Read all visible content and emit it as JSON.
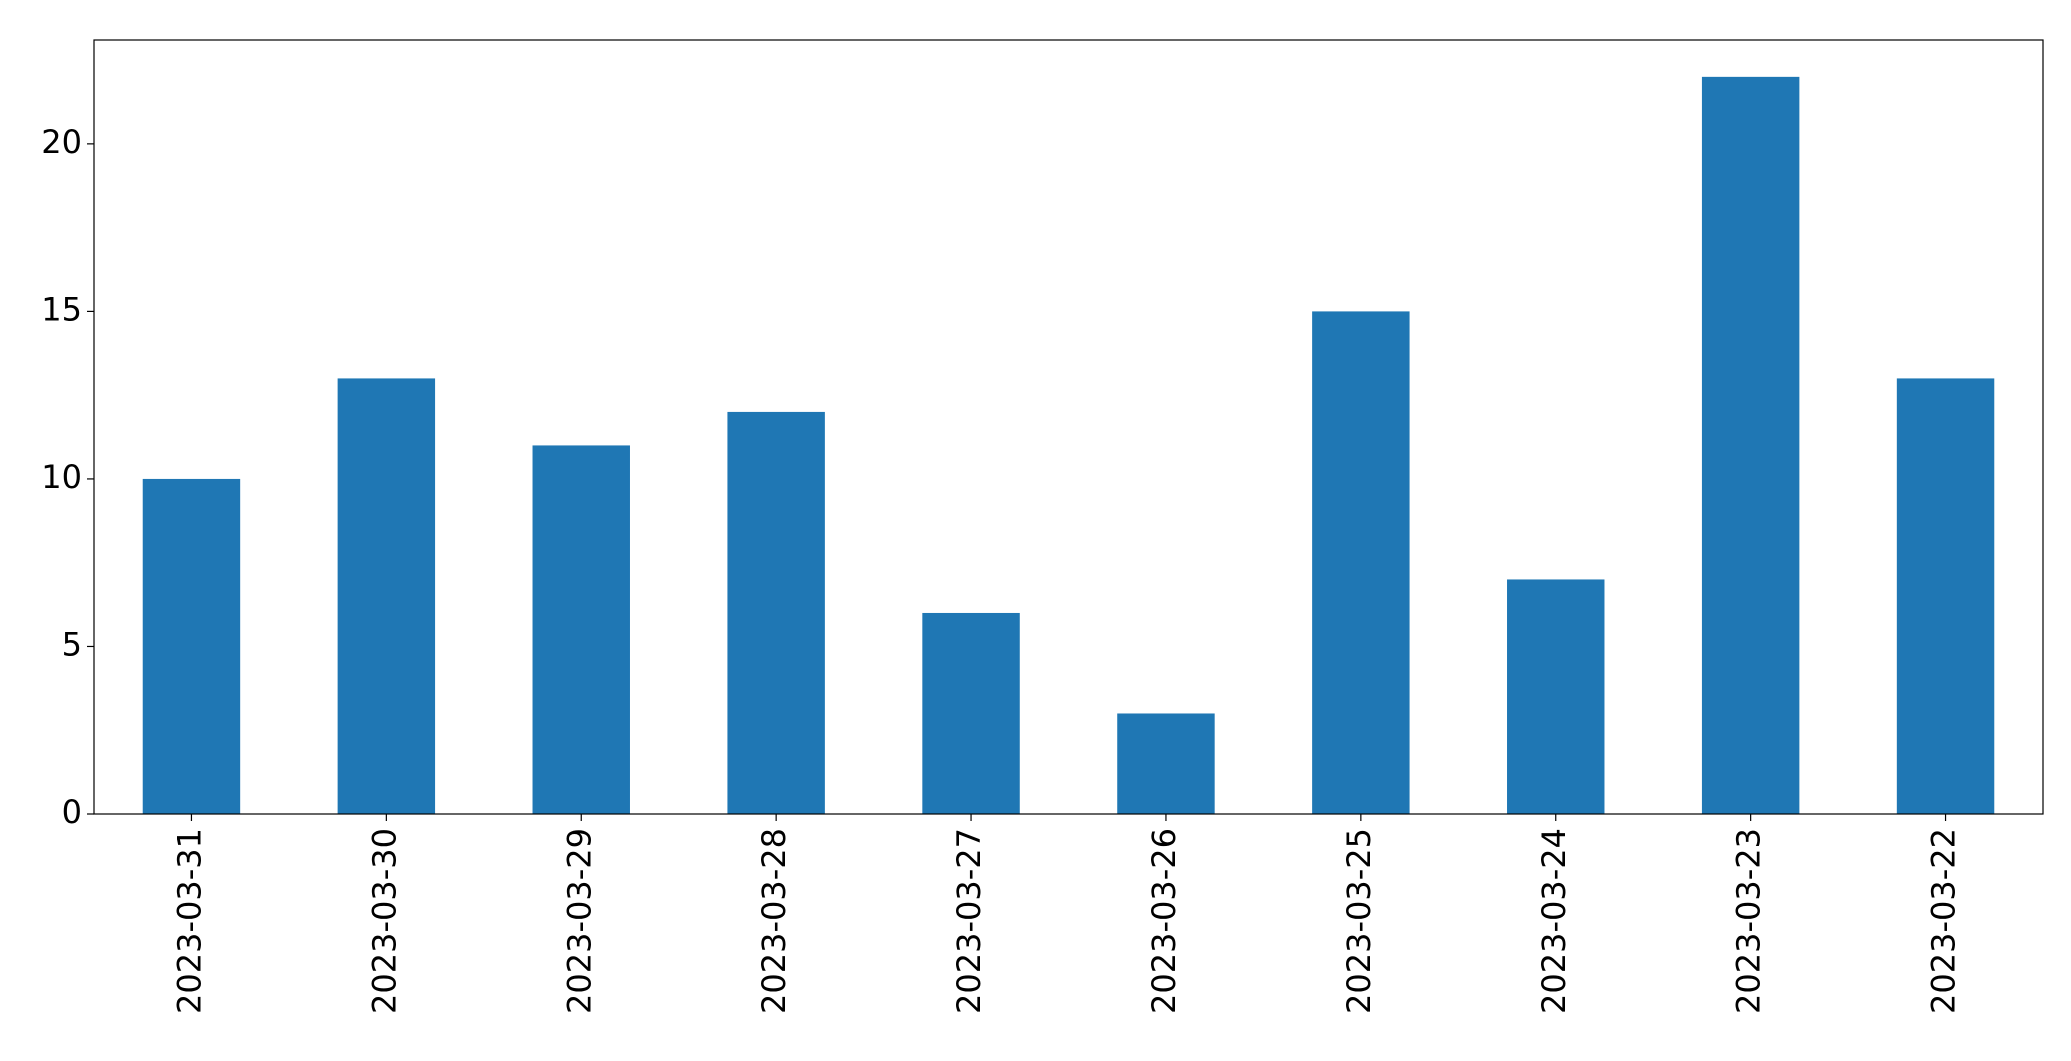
{
  "chart_data": {
    "type": "bar",
    "categories": [
      "2023-03-31",
      "2023-03-30",
      "2023-03-29",
      "2023-03-28",
      "2023-03-27",
      "2023-03-26",
      "2023-03-25",
      "2023-03-24",
      "2023-03-23",
      "2023-03-22"
    ],
    "values": [
      10,
      13,
      11,
      12,
      6,
      3,
      15,
      7,
      22,
      13
    ],
    "color": "#1f77b4",
    "ylim": [
      0,
      23.1
    ],
    "yticks": [
      0,
      5,
      10,
      15,
      20
    ],
    "grid": false
  }
}
